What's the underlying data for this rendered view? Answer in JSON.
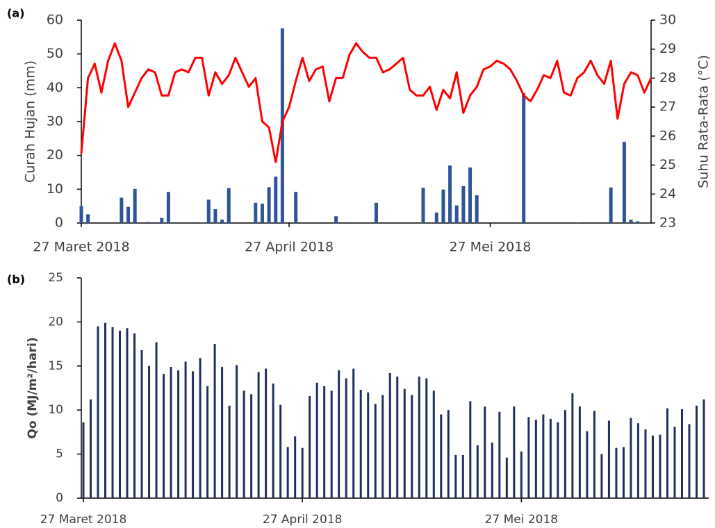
{
  "chart_data": [
    {
      "type": "combo",
      "panel_label": "(a)",
      "y_label": "Curah Hujan (mm)",
      "y2_label": "Suhu Rata-Rata (°C)",
      "categories": [
        "27 Maret 2018",
        null,
        null,
        null,
        null,
        null,
        null,
        null,
        null,
        null,
        null,
        null,
        null,
        null,
        null,
        null,
        null,
        null,
        null,
        null,
        null,
        null,
        null,
        null,
        null,
        null,
        null,
        null,
        null,
        null,
        null,
        "27 April 2018",
        null,
        null,
        null,
        null,
        null,
        null,
        null,
        null,
        null,
        null,
        null,
        null,
        null,
        null,
        null,
        null,
        null,
        null,
        null,
        null,
        null,
        null,
        null,
        null,
        null,
        null,
        null,
        null,
        null,
        "27 Mei 2018",
        null,
        null,
        null,
        null,
        null,
        null,
        null,
        null,
        null,
        null,
        null,
        null,
        null,
        null,
        null,
        null,
        null,
        null,
        null,
        null,
        null,
        null,
        null,
        null
      ],
      "ylim": [
        0,
        60
      ],
      "yticks": [
        0,
        10,
        20,
        30,
        40,
        50,
        60
      ],
      "y2lim": [
        23,
        30
      ],
      "y2ticks": [
        23,
        24,
        25,
        26,
        27,
        28,
        29,
        30
      ],
      "series": [
        {
          "type": "bar",
          "color": "#2f5597",
          "values": [
            5,
            2.6,
            0,
            0,
            0,
            0,
            7.5,
            4.8,
            10.1,
            0,
            0.3,
            0,
            1.5,
            9.2,
            0,
            0,
            0,
            0,
            0.2,
            6.9,
            4.1,
            1.0,
            10.3,
            0,
            0,
            0,
            6.0,
            5.7,
            10.6,
            13.7,
            57.6,
            0,
            9.2,
            0,
            0,
            0,
            0,
            0,
            2.0,
            0,
            0,
            0,
            0,
            0,
            6.0,
            0,
            0,
            0,
            0,
            0,
            0,
            10.4,
            0,
            3.1,
            9.9,
            17.0,
            5.2,
            10.9,
            16.4,
            8.2,
            0,
            0,
            0,
            0,
            0,
            0,
            38.4,
            0,
            0,
            0,
            0,
            0,
            0,
            0,
            0.2,
            0,
            0,
            0,
            0,
            10.5,
            0,
            24.0,
            1.0,
            0.5,
            0,
            0
          ]
        },
        {
          "type": "line",
          "axis": "y2",
          "color": "#ff0000",
          "values": [
            25.4,
            28.0,
            28.5,
            27.5,
            28.6,
            29.2,
            28.6,
            27.0,
            27.5,
            28.0,
            28.3,
            28.2,
            27.4,
            27.4,
            28.2,
            28.3,
            28.2,
            28.7,
            28.7,
            27.4,
            28.2,
            27.8,
            28.1,
            28.7,
            28.2,
            27.7,
            28.0,
            26.5,
            26.3,
            25.1,
            26.5,
            27.0,
            27.9,
            28.7,
            27.9,
            28.3,
            28.4,
            27.2,
            28.0,
            28.0,
            28.8,
            29.2,
            28.9,
            28.7,
            28.7,
            28.2,
            28.3,
            28.5,
            28.7,
            27.6,
            27.4,
            27.4,
            27.7,
            26.9,
            27.6,
            27.3,
            28.2,
            26.8,
            27.4,
            27.7,
            28.3,
            28.4,
            28.6,
            28.5,
            28.3,
            27.9,
            27.4,
            27.2,
            27.6,
            28.1,
            28.0,
            28.6,
            27.5,
            27.4,
            28.0,
            28.2,
            28.6,
            28.1,
            27.8,
            28.6,
            26.6,
            27.8,
            28.2,
            28.1,
            27.5,
            28.0
          ]
        }
      ]
    },
    {
      "type": "bar",
      "panel_label": "(b)",
      "y_label": "Qo (MJ/m²/hari)",
      "categories": [
        "27 Maret 2018",
        null,
        null,
        null,
        null,
        null,
        null,
        null,
        null,
        null,
        null,
        null,
        null,
        null,
        null,
        null,
        null,
        null,
        null,
        null,
        null,
        null,
        null,
        null,
        null,
        null,
        null,
        null,
        null,
        null,
        "27 April 2018",
        null,
        null,
        null,
        null,
        null,
        null,
        null,
        null,
        null,
        null,
        null,
        null,
        null,
        null,
        null,
        null,
        null,
        null,
        null,
        null,
        null,
        null,
        null,
        null,
        null,
        null,
        null,
        null,
        null,
        "27 Mei 2018",
        null,
        null,
        null,
        null,
        null,
        null,
        null,
        null,
        null,
        null,
        null,
        null,
        null,
        null,
        null,
        null,
        null,
        null,
        null,
        null,
        null,
        null,
        null,
        null,
        null
      ],
      "ylim": [
        0,
        25
      ],
      "yticks": [
        0,
        5,
        10,
        15,
        20,
        25
      ],
      "color": "#1f2f5f",
      "values": [
        8.6,
        11.2,
        19.5,
        19.9,
        19.4,
        19.0,
        19.3,
        18.7,
        16.8,
        15.0,
        17.7,
        14.1,
        14.9,
        14.5,
        15.5,
        14.4,
        15.9,
        12.7,
        17.5,
        14.9,
        10.5,
        15.1,
        12.2,
        11.8,
        14.3,
        14.7,
        13.0,
        10.6,
        5.8,
        7.0,
        5.7,
        11.6,
        13.1,
        12.7,
        12.2,
        14.5,
        13.6,
        14.7,
        12.3,
        12.0,
        10.7,
        11.7,
        14.2,
        13.8,
        12.4,
        11.7,
        13.8,
        13.6,
        12.2,
        9.5,
        10.0,
        4.9,
        4.9,
        11.0,
        6.0,
        10.4,
        6.3,
        9.8,
        4.6,
        10.4,
        5.3,
        9.2,
        8.9,
        9.5,
        9.0,
        8.6,
        10.0,
        11.9,
        10.4,
        7.6,
        9.9,
        5.0,
        8.8,
        5.7,
        5.8,
        9.1,
        8.5,
        7.8,
        7.1,
        7.2,
        10.2,
        8.1,
        10.1,
        8.4,
        10.5,
        11.2
      ]
    }
  ]
}
